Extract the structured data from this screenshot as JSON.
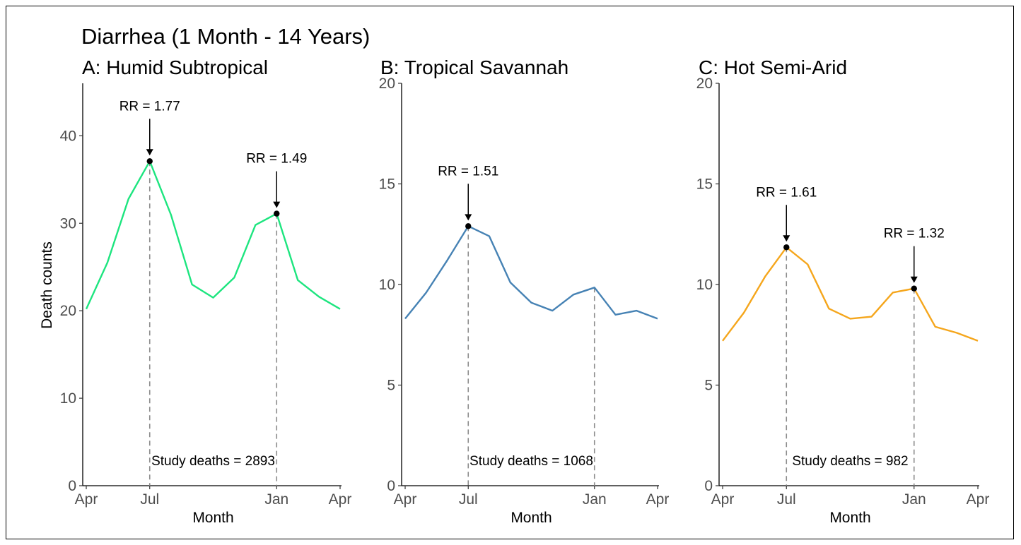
{
  "title": "Diarrhea (1 Month - 14 Years)",
  "ylabel": "Death counts",
  "xlabel": "Month",
  "chart_data": [
    {
      "type": "line",
      "title": "A: Humid Subtropical",
      "color": "#1de57f",
      "ylim": [
        0,
        46
      ],
      "y_ticks": [
        0,
        10,
        20,
        30,
        40
      ],
      "x_ticks": [
        {
          "x": 0,
          "label": "Apr"
        },
        {
          "x": 3,
          "label": "Jul"
        },
        {
          "x": 9,
          "label": "Jan"
        },
        {
          "x": 12,
          "label": "Apr"
        }
      ],
      "x": [
        0,
        1,
        2,
        3,
        4,
        5,
        6,
        7,
        8,
        9,
        10,
        11,
        12
      ],
      "values": [
        20.2,
        25.5,
        32.8,
        37.1,
        31.0,
        23.0,
        21.5,
        23.8,
        29.8,
        31.1,
        23.5,
        21.6,
        20.2
      ],
      "peaks": [
        {
          "x": 3,
          "y": 37.1,
          "label": "RR = 1.77"
        },
        {
          "x": 9,
          "y": 31.1,
          "label": "RR = 1.49"
        }
      ],
      "annotation": "Study deaths = 2893"
    },
    {
      "type": "line",
      "title": "B: Tropical Savannah",
      "color": "#4682b4",
      "ylim": [
        0,
        20
      ],
      "y_ticks": [
        0,
        5,
        10,
        15,
        20
      ],
      "x_ticks": [
        {
          "x": 0,
          "label": "Apr"
        },
        {
          "x": 3,
          "label": "Jul"
        },
        {
          "x": 9,
          "label": "Jan"
        },
        {
          "x": 12,
          "label": "Apr"
        }
      ],
      "x": [
        0,
        1,
        2,
        3,
        4,
        5,
        6,
        7,
        8,
        9,
        10,
        11,
        12
      ],
      "values": [
        8.3,
        9.6,
        11.2,
        12.9,
        12.4,
        10.1,
        9.1,
        8.7,
        9.5,
        9.85,
        8.5,
        8.7,
        8.3
      ],
      "peaks": [
        {
          "x": 3,
          "y": 12.9,
          "label": "RR = 1.51"
        }
      ],
      "dashed_markers": [
        3,
        9
      ],
      "annotation": "Study deaths = 1068"
    },
    {
      "type": "line",
      "title": "C: Hot Semi-Arid",
      "color": "#f5a61c",
      "ylim": [
        0,
        20
      ],
      "y_ticks": [
        0,
        5,
        10,
        15,
        20
      ],
      "x_ticks": [
        {
          "x": 0,
          "label": "Apr"
        },
        {
          "x": 3,
          "label": "Jul"
        },
        {
          "x": 9,
          "label": "Jan"
        },
        {
          "x": 12,
          "label": "Apr"
        }
      ],
      "x": [
        0,
        1,
        2,
        3,
        4,
        5,
        6,
        7,
        8,
        9,
        10,
        11,
        12
      ],
      "values": [
        7.2,
        8.6,
        10.4,
        11.85,
        11.0,
        8.8,
        8.3,
        8.4,
        9.6,
        9.8,
        7.9,
        7.6,
        7.2
      ],
      "peaks": [
        {
          "x": 3,
          "y": 11.85,
          "label": "RR = 1.61"
        },
        {
          "x": 9,
          "y": 9.8,
          "label": "RR = 1.32"
        }
      ],
      "annotation": "Study deaths = 982"
    }
  ]
}
